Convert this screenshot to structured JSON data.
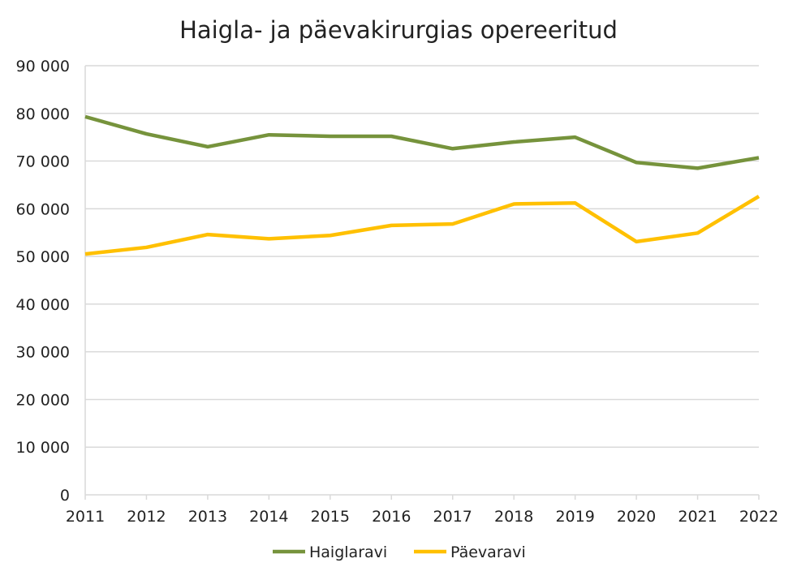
{
  "chart_data": {
    "type": "line",
    "title": "Haigla- ja päevakirurgias opereeritud",
    "xlabel": "",
    "ylabel": "",
    "x": [
      "2011",
      "2012",
      "2013",
      "2014",
      "2015",
      "2016",
      "2017",
      "2018",
      "2019",
      "2020",
      "2021",
      "2022"
    ],
    "ylim": [
      0,
      90000
    ],
    "yticks": [
      "0",
      "10 000",
      "20 000",
      "30 000",
      "40 000",
      "50 000",
      "60 000",
      "70 000",
      "80 000",
      "90 000"
    ],
    "grid": true,
    "legend": "bottom",
    "series": [
      {
        "name": "Haiglaravi",
        "color": "#76933c",
        "values": [
          79300,
          75700,
          73000,
          75500,
          75200,
          75200,
          72600,
          74000,
          75000,
          69700,
          68500,
          70700
        ]
      },
      {
        "name": "Päevaravi",
        "color": "#ffc000",
        "values": [
          50500,
          51900,
          54600,
          53700,
          54400,
          56500,
          56800,
          61000,
          61200,
          53100,
          54900,
          62600
        ]
      }
    ]
  }
}
